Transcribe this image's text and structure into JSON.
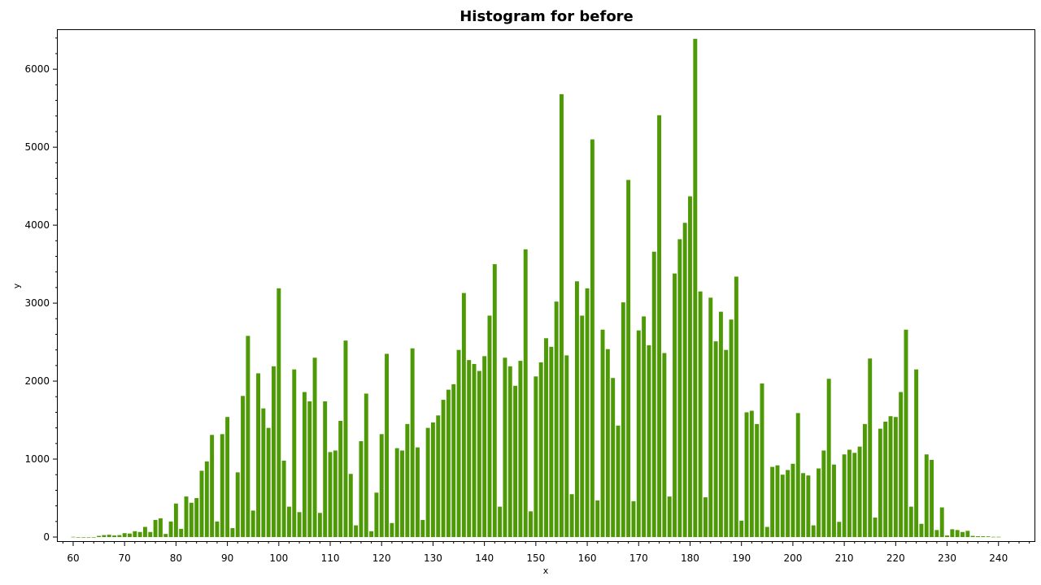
{
  "chart_data": {
    "type": "bar",
    "title": "Histogram for before",
    "xlabel": "x",
    "ylabel": "y",
    "xlim": [
      57,
      247
    ],
    "ylim": [
      0,
      6450
    ],
    "xticks": [
      "60",
      "70",
      "80",
      "90",
      "100",
      "110",
      "120",
      "130",
      "140",
      "150",
      "160",
      "170",
      "180",
      "190",
      "200",
      "210",
      "220",
      "230",
      "240"
    ],
    "yticks": [
      "0",
      "1000",
      "2000",
      "3000",
      "4000",
      "5000",
      "6000"
    ],
    "grid": false,
    "legend": "none",
    "bar_color": "#4e9a06",
    "x": [
      60,
      61,
      62,
      63,
      64,
      65,
      66,
      67,
      68,
      69,
      70,
      71,
      72,
      73,
      74,
      75,
      76,
      77,
      78,
      79,
      80,
      81,
      82,
      83,
      84,
      85,
      86,
      87,
      88,
      89,
      90,
      91,
      92,
      93,
      94,
      95,
      96,
      97,
      98,
      99,
      100,
      101,
      102,
      103,
      104,
      105,
      106,
      107,
      108,
      109,
      110,
      111,
      112,
      113,
      114,
      115,
      116,
      117,
      118,
      119,
      120,
      121,
      122,
      123,
      124,
      125,
      126,
      127,
      128,
      129,
      130,
      131,
      132,
      133,
      134,
      135,
      136,
      137,
      138,
      139,
      140,
      141,
      142,
      143,
      144,
      145,
      146,
      147,
      148,
      149,
      150,
      151,
      152,
      153,
      154,
      155,
      156,
      157,
      158,
      159,
      160,
      161,
      162,
      163,
      164,
      165,
      166,
      167,
      168,
      169,
      170,
      171,
      172,
      173,
      174,
      175,
      176,
      177,
      178,
      179,
      180,
      181,
      182,
      183,
      184,
      185,
      186,
      187,
      188,
      189,
      190,
      191,
      192,
      193,
      194,
      195,
      196,
      197,
      198,
      199,
      200,
      201,
      202,
      203,
      204,
      205,
      206,
      207,
      208,
      209,
      210,
      211,
      212,
      213,
      214,
      215,
      216,
      217,
      218,
      219,
      220,
      221,
      222,
      223,
      224,
      225,
      226,
      227,
      228,
      229,
      230,
      231,
      232,
      233,
      234,
      235,
      236,
      237,
      238,
      239,
      240
    ],
    "values": [
      3,
      0,
      0,
      0,
      0,
      15,
      25,
      30,
      20,
      25,
      50,
      45,
      75,
      65,
      130,
      65,
      220,
      240,
      40,
      200,
      430,
      105,
      520,
      440,
      500,
      850,
      970,
      1310,
      200,
      1320,
      1540,
      115,
      830,
      1810,
      2580,
      340,
      2100,
      1650,
      1400,
      2190,
      3190,
      980,
      390,
      2150,
      320,
      1860,
      1740,
      2300,
      310,
      1740,
      1090,
      1110,
      1490,
      2520,
      810,
      150,
      1230,
      1840,
      75,
      570,
      1320,
      2350,
      180,
      1140,
      1110,
      1450,
      2420,
      1150,
      220,
      1400,
      1470,
      1560,
      1760,
      1890,
      1960,
      2400,
      3130,
      2270,
      2220,
      2130,
      2320,
      2840,
      3500,
      390,
      2300,
      2190,
      1940,
      2260,
      3690,
      330,
      2060,
      2240,
      2550,
      2440,
      3020,
      5680,
      2330,
      550,
      3280,
      2840,
      3190,
      5100,
      470,
      2660,
      2410,
      2040,
      1430,
      3010,
      4580,
      460,
      2650,
      2830,
      2460,
      3660,
      5410,
      2360,
      520,
      3380,
      3820,
      4030,
      4370,
      6390,
      3150,
      510,
      3070,
      2510,
      2890,
      2400,
      2790,
      3340,
      210,
      1600,
      1620,
      1450,
      1970,
      130,
      900,
      920,
      800,
      860,
      940,
      1590,
      820,
      790,
      150,
      880,
      1110,
      2030,
      930,
      195,
      1060,
      1120,
      1080,
      1160,
      1450,
      2290,
      250,
      1390,
      1480,
      1550,
      1540,
      1860,
      2660,
      390,
      2150,
      170,
      1060,
      990,
      90,
      380,
      20,
      100,
      90,
      65,
      80,
      15,
      10,
      10,
      8,
      3,
      3
    ]
  }
}
